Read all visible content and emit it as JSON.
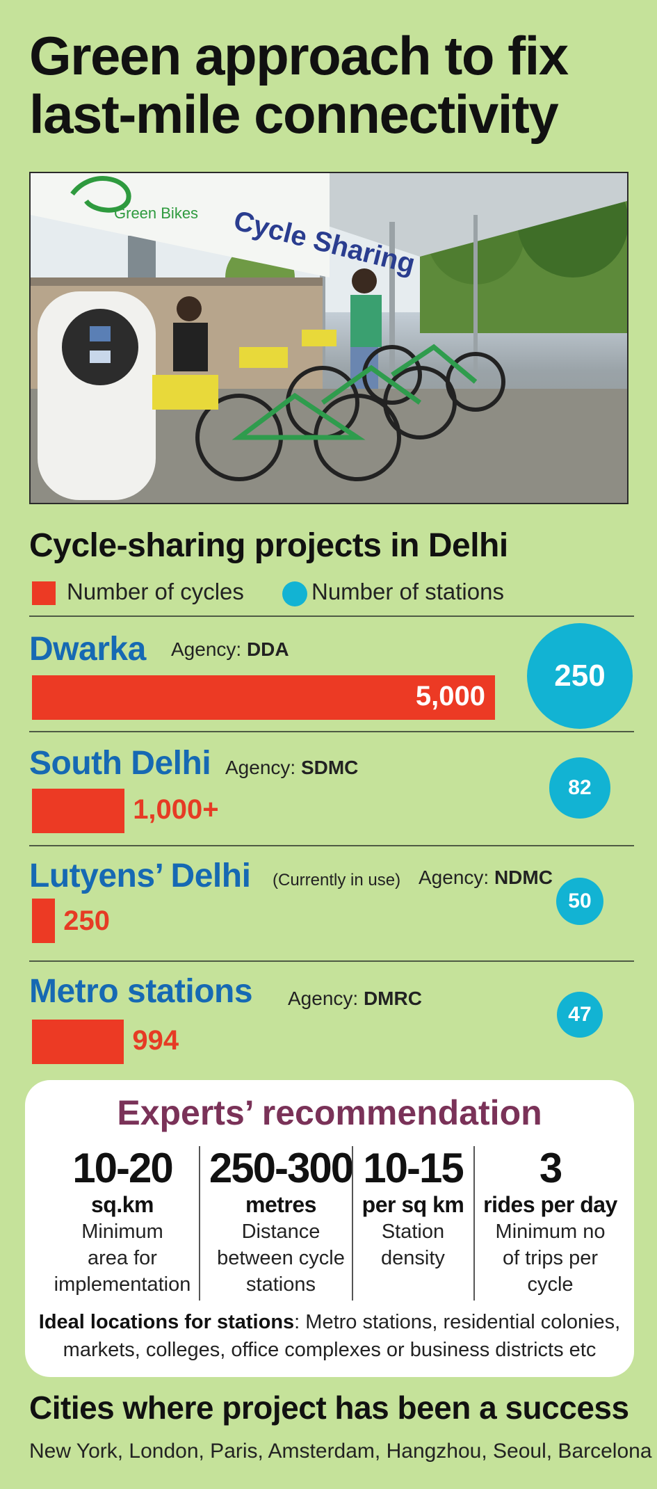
{
  "headline": {
    "line1": "Green approach to fix",
    "line2": "last-mile connectivity"
  },
  "photo": {
    "sign_text": "Cycle Sharing",
    "logo_text": "Green Bikes"
  },
  "colors": {
    "background": "#c5e29a",
    "cycles_bar": "#ec3a24",
    "stations_bubble": "#12b3d3",
    "place_name": "#1669b3",
    "experts_title": "#7a3258"
  },
  "chart_data": {
    "type": "bar",
    "title": "Cycle-sharing projects in Delhi",
    "legend": {
      "cycles": "Number of cycles",
      "stations": "Number of stations"
    },
    "agency_label": "Agency:",
    "categories": [
      "Dwarka",
      "South Delhi",
      "Lutyens’ Delhi",
      "Metro stations"
    ],
    "rows": [
      {
        "name": "Dwarka",
        "agency": "DDA",
        "note": "",
        "cycles": 5000,
        "cycles_label": "5,000",
        "stations": 250,
        "stations_label": "250"
      },
      {
        "name": "South Delhi",
        "agency": "SDMC",
        "note": "",
        "cycles": 1000,
        "cycles_label": "1,000+",
        "stations": 82,
        "stations_label": "82"
      },
      {
        "name": "Lutyens’ Delhi",
        "agency": "NDMC",
        "note": "(Currently in use)",
        "cycles": 250,
        "cycles_label": "250",
        "stations": 50,
        "stations_label": "50"
      },
      {
        "name": "Metro stations",
        "agency": "DMRC",
        "note": "",
        "cycles": 994,
        "cycles_label": "994",
        "stations": 47,
        "stations_label": "47"
      }
    ],
    "series": [
      {
        "name": "Number of cycles",
        "values": [
          5000,
          1000,
          250,
          994
        ]
      },
      {
        "name": "Number of stations",
        "values": [
          250,
          82,
          50,
          47
        ]
      }
    ]
  },
  "experts": {
    "title": "Experts’ recommendation",
    "items": [
      {
        "value": "10-20",
        "unit": "sq.km",
        "desc1": "Minimum",
        "desc2": "area for",
        "desc3": "implementation"
      },
      {
        "value": "250-300",
        "unit": "metres",
        "desc1": "Distance",
        "desc2": "between cycle",
        "desc3": "stations"
      },
      {
        "value": "10-15",
        "unit": "per sq km",
        "desc1": "Station",
        "desc2": "density",
        "desc3": ""
      },
      {
        "value": "3",
        "unit": "rides per day",
        "desc1": "Minimum no",
        "desc2": "of trips per",
        "desc3": "cycle"
      }
    ],
    "ideal_label": "Ideal locations for stations",
    "ideal_text": ": Metro stations, residential colonies, markets, colleges, office complexes or business districts etc"
  },
  "cities": {
    "title": "Cities where project has been a success",
    "list": "New York, London, Paris, Amsterdam, Hangzhou, Seoul, Barcelona"
  }
}
